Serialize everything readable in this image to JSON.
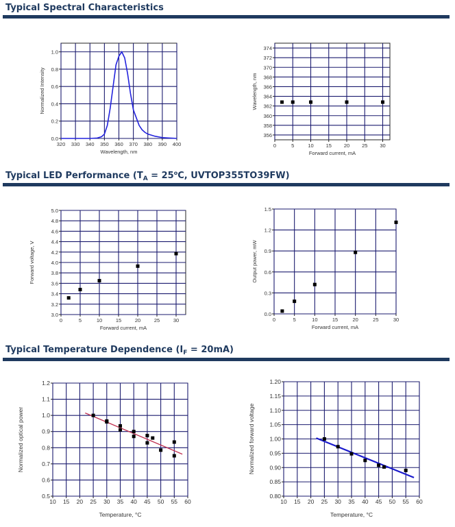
{
  "sections": [
    {
      "title": "Typical Spectral Characteristics"
    },
    {
      "title_parts": [
        "Typical LED Performance (T",
        "A",
        " = 25",
        "o",
        "C, UVTOP355TO39FW)"
      ]
    },
    {
      "title_parts": [
        "Typical Temperature Dependence (I",
        "F",
        " = 20mA)"
      ]
    }
  ],
  "colors": {
    "heading": "#1f3a5f",
    "grid": "#1a1a6e",
    "spectrum": "#2222dd",
    "fit_power": "#c03050",
    "fit_voltage": "#1a1acc",
    "marker": "#000000"
  },
  "chart_data": [
    {
      "type": "line",
      "title": "",
      "xlabel": "Wavelength, nm",
      "ylabel": "Normalized Intensity",
      "xlim": [
        320,
        400
      ],
      "ylim": [
        0,
        1.1
      ],
      "xticks": [
        320,
        330,
        340,
        350,
        360,
        370,
        380,
        390,
        400
      ],
      "yticks": [
        0.0,
        0.2,
        0.4,
        0.6,
        0.8,
        1.0
      ],
      "ytick_labels": [
        "0.0",
        "0.2",
        "0.4",
        "0.6",
        "0.8",
        "1.0"
      ],
      "grid": true,
      "series": [
        {
          "x": [
            320,
            340,
            345,
            348,
            350,
            352,
            354,
            356,
            358,
            360,
            362,
            364,
            366,
            368,
            370,
            372,
            374,
            376,
            378,
            380,
            385,
            390,
            395,
            400
          ],
          "y": [
            0,
            0,
            0.005,
            0.02,
            0.05,
            0.15,
            0.35,
            0.6,
            0.85,
            0.95,
            1.0,
            0.93,
            0.75,
            0.52,
            0.33,
            0.24,
            0.15,
            0.1,
            0.07,
            0.05,
            0.025,
            0.01,
            0.005,
            0
          ]
        }
      ]
    },
    {
      "type": "scatter",
      "title": "",
      "xlabel": "Forward current, mA",
      "ylabel": "Wavelength, nm",
      "xlim": [
        0,
        32
      ],
      "ylim": [
        355,
        375
      ],
      "xticks": [
        0,
        5,
        10,
        15,
        20,
        25,
        30
      ],
      "yticks": [
        356,
        358,
        360,
        362,
        364,
        366,
        368,
        370,
        372,
        374
      ],
      "ytick_labels": [
        "356",
        "358",
        "360",
        "362",
        "364",
        "366",
        "368",
        "370",
        "372",
        "374"
      ],
      "grid": true,
      "series": [
        {
          "x": [
            2,
            5,
            10,
            20,
            30
          ],
          "y": [
            362.8,
            362.8,
            362.8,
            362.8,
            362.8
          ]
        }
      ]
    },
    {
      "type": "scatter",
      "title": "",
      "xlabel": "Forward current, mA",
      "ylabel": "Forward voltage, V",
      "xlim": [
        0,
        32.5
      ],
      "ylim": [
        3.0,
        5.0
      ],
      "xticks": [
        0,
        5,
        10,
        15,
        20,
        25,
        30
      ],
      "yticks": [
        3.0,
        3.2,
        3.4,
        3.6,
        3.8,
        4.0,
        4.2,
        4.4,
        4.6,
        4.8,
        5.0
      ],
      "ytick_labels": [
        "3.0",
        "3.2",
        "3.4",
        "3.6",
        "3.8",
        "4.0",
        "4.2",
        "4.4",
        "4.6",
        "4.8",
        "5.0"
      ],
      "grid": true,
      "series": [
        {
          "x": [
            2,
            5,
            10,
            20,
            30
          ],
          "y": [
            3.32,
            3.48,
            3.65,
            3.93,
            4.17
          ]
        }
      ]
    },
    {
      "type": "scatter",
      "title": "",
      "xlabel": "Forward current, mA",
      "ylabel": "Output power, mW",
      "xlim": [
        0,
        30
      ],
      "ylim": [
        0,
        1.5
      ],
      "xticks": [
        0,
        5,
        10,
        15,
        20,
        25,
        30
      ],
      "yticks": [
        0,
        0.3,
        0.6,
        0.9,
        1.2,
        1.5
      ],
      "ytick_labels": [
        "0.0",
        "0.3",
        "0.6",
        "0.9",
        "1.2",
        "1.5"
      ],
      "grid": true,
      "series": [
        {
          "x": [
            2,
            5,
            10,
            20,
            30
          ],
          "y": [
            0.04,
            0.18,
            0.42,
            0.88,
            1.31
          ]
        }
      ]
    },
    {
      "type": "scatter",
      "title": "",
      "xlabel": "Temperature, °C",
      "ylabel": "Normalized optical power",
      "xlim": [
        10,
        60
      ],
      "ylim": [
        0.5,
        1.2
      ],
      "xticks": [
        10,
        15,
        20,
        25,
        30,
        35,
        40,
        45,
        50,
        55,
        60
      ],
      "yticks": [
        0.5,
        0.6,
        0.7,
        0.8,
        0.9,
        1.0,
        1.1,
        1.2
      ],
      "ytick_labels": [
        "0.5",
        "0.6",
        "0.7",
        "0.8",
        "0.9",
        "1.0",
        "1.1",
        "1.2"
      ],
      "grid": true,
      "series": [
        {
          "x": [
            25,
            30,
            30,
            35,
            35,
            40,
            40,
            45,
            45,
            47,
            50,
            55,
            55
          ],
          "y": [
            1.0,
            0.965,
            0.96,
            0.935,
            0.91,
            0.9,
            0.87,
            0.875,
            0.83,
            0.86,
            0.785,
            0.835,
            0.75
          ]
        }
      ],
      "fit": {
        "x": [
          22,
          58
        ],
        "y": [
          1.015,
          0.76
        ]
      }
    },
    {
      "type": "scatter",
      "title": "",
      "xlabel": "Temperature, °C",
      "ylabel": "Normalized forward voltage",
      "xlim": [
        10,
        60
      ],
      "ylim": [
        0.8,
        1.2
      ],
      "xticks": [
        10,
        15,
        20,
        25,
        30,
        35,
        40,
        45,
        50,
        55,
        60
      ],
      "yticks": [
        0.8,
        0.85,
        0.9,
        0.95,
        1.0,
        1.05,
        1.1,
        1.15,
        1.2
      ],
      "ytick_labels": [
        "0.80",
        "0.85",
        "0.90",
        "0.95",
        "1.00",
        "1.05",
        "1.10",
        "1.15",
        "1.20"
      ],
      "grid": true,
      "series": [
        {
          "x": [
            25,
            30,
            35,
            40,
            45,
            47,
            55
          ],
          "y": [
            1.0,
            0.973,
            0.948,
            0.925,
            0.908,
            0.902,
            0.89
          ]
        }
      ],
      "fit": {
        "x": [
          22,
          58
        ],
        "y": [
          1.003,
          0.865
        ]
      }
    }
  ]
}
